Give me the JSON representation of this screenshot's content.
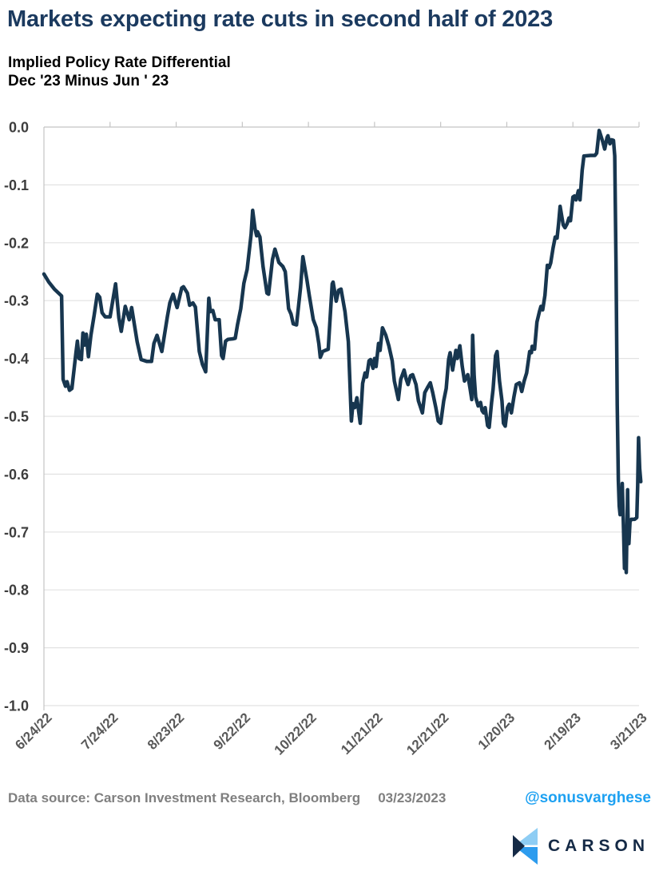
{
  "title": "Markets expecting rate cuts in second half of 2023",
  "subtitle_line1": "Implied Policy Rate Differential",
  "subtitle_line2": "Dec '23 Minus Jun ' 23",
  "footer": {
    "source_label": "Data source: ",
    "source_text": "Carson Investment Research, Bloomberg",
    "date": "03/23/2023",
    "handle": "@sonusvarghese"
  },
  "logo": {
    "text": "CARSON"
  },
  "colors": {
    "title": "#1b3a5f",
    "subtitle": "#000000",
    "line": "#17364F",
    "grid": "#e2e2e2",
    "axis": "#c4c4c4",
    "y_label": "#3d3d3d",
    "x_label": "#595959",
    "footer": "#7f7f7f",
    "handle": "#1da1f2",
    "logo_light": "#8ECDF4",
    "logo_blue": "#2D9CEE",
    "logo_navy": "#152A46",
    "logo_text": "#152A46"
  },
  "chart_data": {
    "type": "line",
    "title": "Implied Policy Rate Differential Dec '23 Minus Jun ' 23",
    "xlabel": "",
    "ylabel": "",
    "grid": "horizontal",
    "legend": "none",
    "x": {
      "unit": "days since 6/24/22",
      "min": 0,
      "max": 271,
      "tick_days": [
        0,
        30,
        60,
        90,
        120,
        150,
        180,
        210,
        240,
        270
      ],
      "tick_labels": [
        "6/24/22",
        "7/24/22",
        "8/23/22",
        "9/22/22",
        "10/22/22",
        "11/21/22",
        "12/21/22",
        "1/20/23",
        "2/19/23",
        "3/21/23"
      ]
    },
    "y": {
      "min": -1.0,
      "max": 0.0,
      "tick_values": [
        0.0,
        -0.1,
        -0.2,
        -0.3,
        -0.4,
        -0.5,
        -0.6,
        -0.7,
        -0.8,
        -0.9,
        -1.0
      ],
      "tick_labels": [
        "0.0",
        "-0.1",
        "-0.2",
        "-0.3",
        "-0.4",
        "-0.5",
        "-0.6",
        "-0.7",
        "-0.8",
        "-0.9",
        "-1.0"
      ]
    },
    "series": [
      {
        "name": "Dec '23 minus Jun '23 implied policy rate differential (%)",
        "points": [
          [
            0,
            -0.254
          ],
          [
            2.2,
            -0.268
          ],
          [
            4.7,
            -0.28
          ],
          [
            8.0,
            -0.292
          ],
          [
            8.7,
            -0.436
          ],
          [
            9.8,
            -0.448
          ],
          [
            10.5,
            -0.44
          ],
          [
            11.6,
            -0.455
          ],
          [
            12.7,
            -0.452
          ],
          [
            14.5,
            -0.391
          ],
          [
            15.2,
            -0.37
          ],
          [
            15.9,
            -0.4
          ],
          [
            17.0,
            -0.402
          ],
          [
            17.7,
            -0.356
          ],
          [
            18.4,
            -0.377
          ],
          [
            19.2,
            -0.358
          ],
          [
            20.2,
            -0.397
          ],
          [
            21.3,
            -0.36
          ],
          [
            22.8,
            -0.325
          ],
          [
            24.2,
            -0.289
          ],
          [
            25.3,
            -0.294
          ],
          [
            26.4,
            -0.321
          ],
          [
            27.8,
            -0.328
          ],
          [
            30.0,
            -0.328
          ],
          [
            32.5,
            -0.271
          ],
          [
            34.0,
            -0.33
          ],
          [
            35.1,
            -0.353
          ],
          [
            36.9,
            -0.31
          ],
          [
            38.7,
            -0.333
          ],
          [
            39.8,
            -0.312
          ],
          [
            42.3,
            -0.371
          ],
          [
            44.1,
            -0.402
          ],
          [
            46.6,
            -0.405
          ],
          [
            48.8,
            -0.405
          ],
          [
            49.9,
            -0.374
          ],
          [
            51.3,
            -0.36
          ],
          [
            52.4,
            -0.374
          ],
          [
            53.5,
            -0.388
          ],
          [
            56.0,
            -0.328
          ],
          [
            57.1,
            -0.304
          ],
          [
            58.6,
            -0.289
          ],
          [
            60.4,
            -0.312
          ],
          [
            62.5,
            -0.278
          ],
          [
            63.3,
            -0.276
          ],
          [
            65.1,
            -0.287
          ],
          [
            66.1,
            -0.308
          ],
          [
            67.6,
            -0.304
          ],
          [
            68.7,
            -0.311
          ],
          [
            70.5,
            -0.388
          ],
          [
            71.9,
            -0.41
          ],
          [
            73.4,
            -0.423
          ],
          [
            74.8,
            -0.296
          ],
          [
            75.5,
            -0.319
          ],
          [
            76.6,
            -0.317
          ],
          [
            77.7,
            -0.333
          ],
          [
            79.5,
            -0.333
          ],
          [
            80.6,
            -0.395
          ],
          [
            81.3,
            -0.4
          ],
          [
            82.4,
            -0.37
          ],
          [
            83.5,
            -0.367
          ],
          [
            85.7,
            -0.366
          ],
          [
            86.8,
            -0.365
          ],
          [
            87.8,
            -0.342
          ],
          [
            89.3,
            -0.314
          ],
          [
            90.7,
            -0.27
          ],
          [
            92.2,
            -0.246
          ],
          [
            94.0,
            -0.185
          ],
          [
            94.7,
            -0.144
          ],
          [
            95.8,
            -0.176
          ],
          [
            96.5,
            -0.188
          ],
          [
            96.9,
            -0.181
          ],
          [
            98.0,
            -0.19
          ],
          [
            99.4,
            -0.241
          ],
          [
            101.2,
            -0.287
          ],
          [
            101.9,
            -0.289
          ],
          [
            103.7,
            -0.229
          ],
          [
            104.8,
            -0.211
          ],
          [
            106.6,
            -0.234
          ],
          [
            108.4,
            -0.241
          ],
          [
            109.5,
            -0.25
          ],
          [
            111.0,
            -0.314
          ],
          [
            112.1,
            -0.323
          ],
          [
            113.1,
            -0.34
          ],
          [
            114.6,
            -0.342
          ],
          [
            116.4,
            -0.278
          ],
          [
            117.5,
            -0.224
          ],
          [
            119.3,
            -0.264
          ],
          [
            120.4,
            -0.291
          ],
          [
            122.2,
            -0.333
          ],
          [
            123.6,
            -0.347
          ],
          [
            124.7,
            -0.374
          ],
          [
            125.4,
            -0.398
          ],
          [
            126.5,
            -0.388
          ],
          [
            127.6,
            -0.386
          ],
          [
            129.0,
            -0.384
          ],
          [
            130.8,
            -0.271
          ],
          [
            131.2,
            -0.268
          ],
          [
            132.6,
            -0.301
          ],
          [
            133.7,
            -0.282
          ],
          [
            134.8,
            -0.28
          ],
          [
            136.6,
            -0.319
          ],
          [
            138.1,
            -0.371
          ],
          [
            139.5,
            -0.508
          ],
          [
            140.2,
            -0.478
          ],
          [
            141.0,
            -0.485
          ],
          [
            142.0,
            -0.468
          ],
          [
            143.5,
            -0.512
          ],
          [
            144.6,
            -0.443
          ],
          [
            145.7,
            -0.425
          ],
          [
            146.4,
            -0.432
          ],
          [
            147.5,
            -0.404
          ],
          [
            148.2,
            -0.402
          ],
          [
            149.3,
            -0.417
          ],
          [
            150.0,
            -0.4
          ],
          [
            150.7,
            -0.414
          ],
          [
            151.8,
            -0.374
          ],
          [
            152.5,
            -0.386
          ],
          [
            153.6,
            -0.347
          ],
          [
            155.1,
            -0.36
          ],
          [
            156.5,
            -0.378
          ],
          [
            158.0,
            -0.404
          ],
          [
            159.0,
            -0.439
          ],
          [
            160.8,
            -0.471
          ],
          [
            161.9,
            -0.436
          ],
          [
            163.4,
            -0.42
          ],
          [
            164.4,
            -0.436
          ],
          [
            165.2,
            -0.445
          ],
          [
            166.3,
            -0.43
          ],
          [
            167.3,
            -0.428
          ],
          [
            168.8,
            -0.445
          ],
          [
            169.9,
            -0.473
          ],
          [
            171.7,
            -0.494
          ],
          [
            172.8,
            -0.459
          ],
          [
            174.2,
            -0.449
          ],
          [
            175.3,
            -0.442
          ],
          [
            176.4,
            -0.459
          ],
          [
            177.8,
            -0.485
          ],
          [
            178.9,
            -0.508
          ],
          [
            180.0,
            -0.512
          ],
          [
            181.4,
            -0.473
          ],
          [
            182.5,
            -0.452
          ],
          [
            183.6,
            -0.402
          ],
          [
            184.3,
            -0.39
          ],
          [
            185.4,
            -0.42
          ],
          [
            186.9,
            -0.386
          ],
          [
            187.6,
            -0.4
          ],
          [
            188.7,
            -0.378
          ],
          [
            189.8,
            -0.414
          ],
          [
            190.8,
            -0.439
          ],
          [
            192.3,
            -0.428
          ],
          [
            193.4,
            -0.453
          ],
          [
            194.1,
            -0.471
          ],
          [
            194.5,
            -0.36
          ],
          [
            195.2,
            -0.43
          ],
          [
            195.9,
            -0.467
          ],
          [
            197.0,
            -0.482
          ],
          [
            198.1,
            -0.476
          ],
          [
            198.8,
            -0.49
          ],
          [
            199.5,
            -0.494
          ],
          [
            200.2,
            -0.485
          ],
          [
            201.3,
            -0.516
          ],
          [
            202.0,
            -0.519
          ],
          [
            203.1,
            -0.476
          ],
          [
            203.8,
            -0.453
          ],
          [
            204.9,
            -0.395
          ],
          [
            205.6,
            -0.388
          ],
          [
            206.7,
            -0.439
          ],
          [
            207.8,
            -0.473
          ],
          [
            208.5,
            -0.512
          ],
          [
            209.3,
            -0.517
          ],
          [
            210.3,
            -0.485
          ],
          [
            211.1,
            -0.479
          ],
          [
            212.1,
            -0.494
          ],
          [
            213.2,
            -0.467
          ],
          [
            214.3,
            -0.445
          ],
          [
            215.8,
            -0.442
          ],
          [
            216.8,
            -0.457
          ],
          [
            217.9,
            -0.439
          ],
          [
            219.0,
            -0.425
          ],
          [
            220.4,
            -0.388
          ],
          [
            221.2,
            -0.39
          ],
          [
            221.5,
            -0.379
          ],
          [
            222.6,
            -0.384
          ],
          [
            223.7,
            -0.337
          ],
          [
            224.8,
            -0.319
          ],
          [
            225.5,
            -0.31
          ],
          [
            226.3,
            -0.316
          ],
          [
            227.3,
            -0.291
          ],
          [
            228.4,
            -0.239
          ],
          [
            229.2,
            -0.243
          ],
          [
            229.9,
            -0.235
          ],
          [
            231.0,
            -0.209
          ],
          [
            232.0,
            -0.19
          ],
          [
            232.8,
            -0.192
          ],
          [
            233.5,
            -0.167
          ],
          [
            234.2,
            -0.137
          ],
          [
            234.9,
            -0.153
          ],
          [
            235.6,
            -0.169
          ],
          [
            236.4,
            -0.174
          ],
          [
            237.4,
            -0.167
          ],
          [
            238.2,
            -0.157
          ],
          [
            238.9,
            -0.162
          ],
          [
            240.0,
            -0.121
          ],
          [
            240.7,
            -0.119
          ],
          [
            241.4,
            -0.126
          ],
          [
            242.5,
            -0.11
          ],
          [
            243.2,
            -0.126
          ],
          [
            244.2,
            -0.075
          ],
          [
            245.0,
            -0.05
          ],
          [
            248.0,
            -0.049
          ],
          [
            250.0,
            -0.049
          ],
          [
            250.8,
            -0.045
          ],
          [
            251.9,
            -0.006
          ],
          [
            253.5,
            -0.025
          ],
          [
            254.4,
            -0.038
          ],
          [
            255.5,
            -0.018
          ],
          [
            255.9,
            -0.015
          ],
          [
            256.8,
            -0.029
          ],
          [
            257.5,
            -0.022
          ],
          [
            258.4,
            -0.023
          ],
          [
            259.0,
            -0.05
          ],
          [
            259.6,
            -0.25
          ],
          [
            260.1,
            -0.48
          ],
          [
            260.6,
            -0.61
          ],
          [
            261.0,
            -0.655
          ],
          [
            261.4,
            -0.67
          ],
          [
            261.8,
            -0.64
          ],
          [
            262.1,
            -0.665
          ],
          [
            262.4,
            -0.616
          ],
          [
            263.0,
            -0.7
          ],
          [
            263.4,
            -0.763
          ],
          [
            263.8,
            -0.7
          ],
          [
            264.2,
            -0.77
          ],
          [
            264.8,
            -0.627
          ],
          [
            265.1,
            -0.7
          ],
          [
            265.4,
            -0.72
          ],
          [
            265.9,
            -0.682
          ],
          [
            266.5,
            -0.678
          ],
          [
            268.0,
            -0.678
          ],
          [
            269.0,
            -0.675
          ],
          [
            269.4,
            -0.62
          ],
          [
            269.8,
            -0.537
          ],
          [
            270.3,
            -0.59
          ],
          [
            270.8,
            -0.613
          ]
        ]
      }
    ]
  }
}
